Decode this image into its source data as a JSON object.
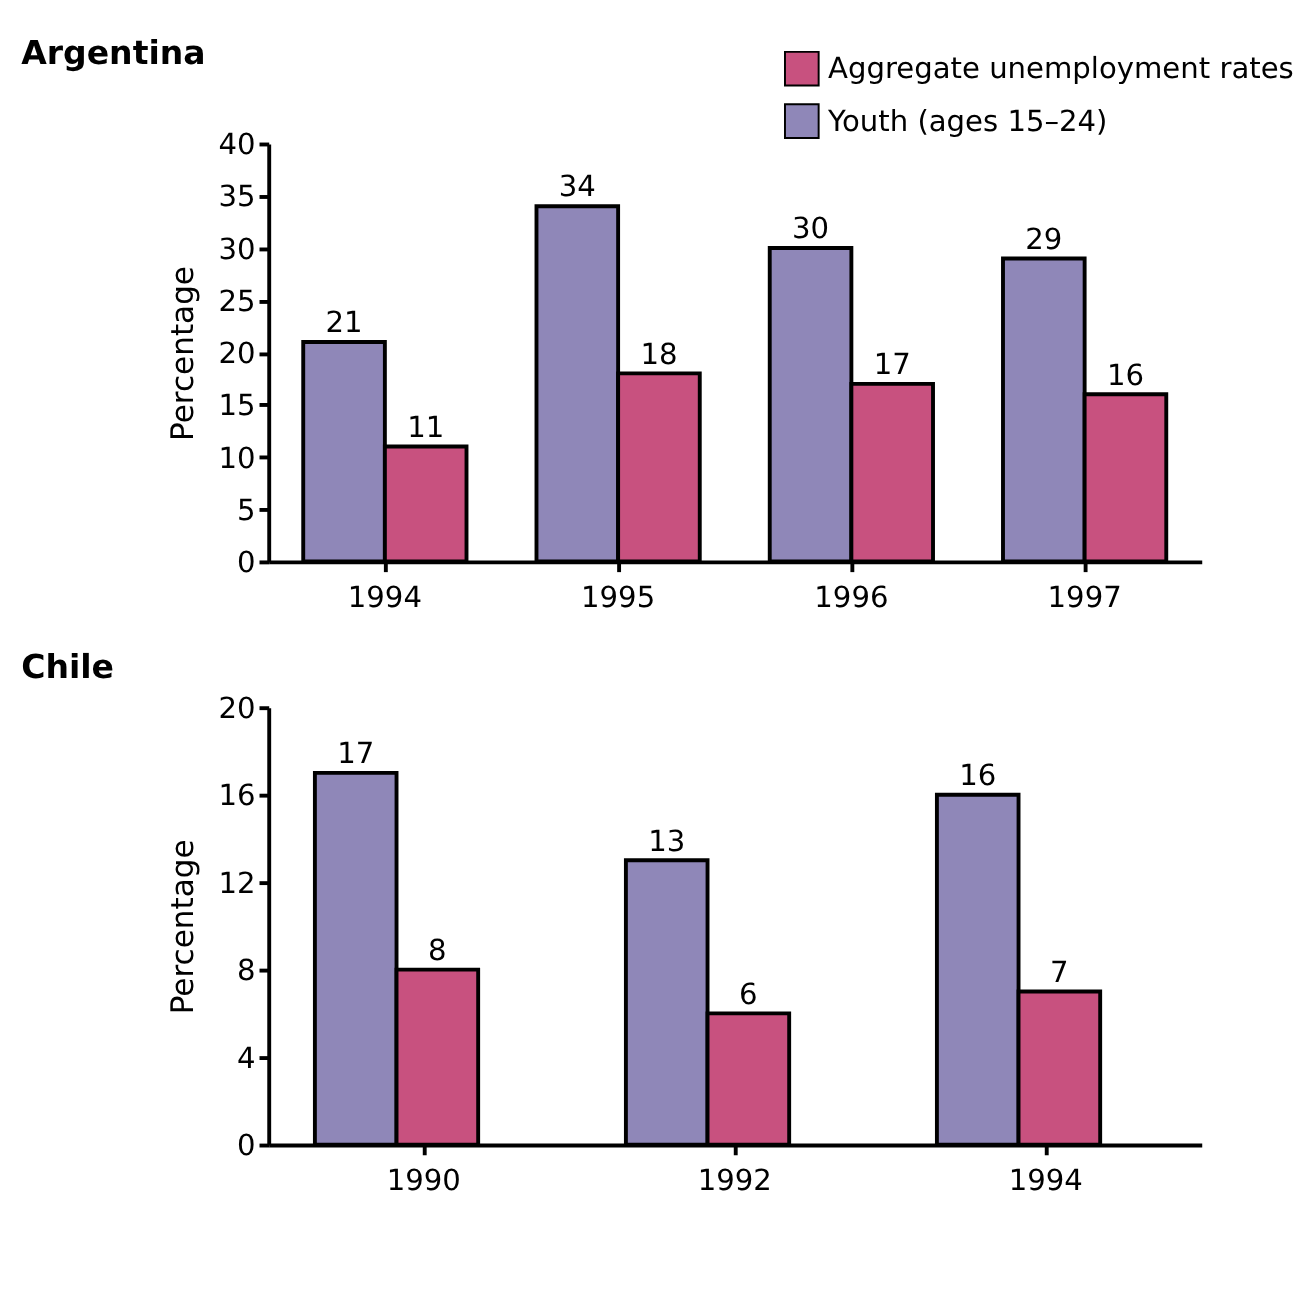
{
  "chart_data": [
    {
      "type": "bar",
      "title": "Argentina",
      "ylabel": "Percentage",
      "categories": [
        "1994",
        "1995",
        "1996",
        "1997"
      ],
      "series": [
        {
          "name": "Youth (ages 15–24)",
          "color": "#8f87b8",
          "values": [
            21,
            34,
            30,
            29
          ]
        },
        {
          "name": "Aggregate unemployment rates",
          "color": "#c8517f",
          "values": [
            11,
            18,
            17,
            16
          ]
        }
      ],
      "ylim": [
        0,
        40
      ],
      "yticks": [
        0,
        5,
        10,
        15,
        20,
        25,
        30,
        35,
        40
      ],
      "data_labels": true,
      "grid": false,
      "legend": "top right"
    },
    {
      "type": "bar",
      "title": "Chile",
      "ylabel": "Percentage",
      "categories": [
        "1990",
        "1992",
        "1994"
      ],
      "series": [
        {
          "color": "#8f87b8",
          "values": [
            17,
            13,
            16
          ]
        },
        {
          "color": "#c8517f",
          "values": [
            8,
            6,
            7
          ]
        }
      ],
      "ylim": [
        0,
        20
      ],
      "yticks": [
        0,
        4,
        8,
        12,
        16,
        20
      ],
      "data_labels": true,
      "grid": false,
      "legend": false
    }
  ]
}
